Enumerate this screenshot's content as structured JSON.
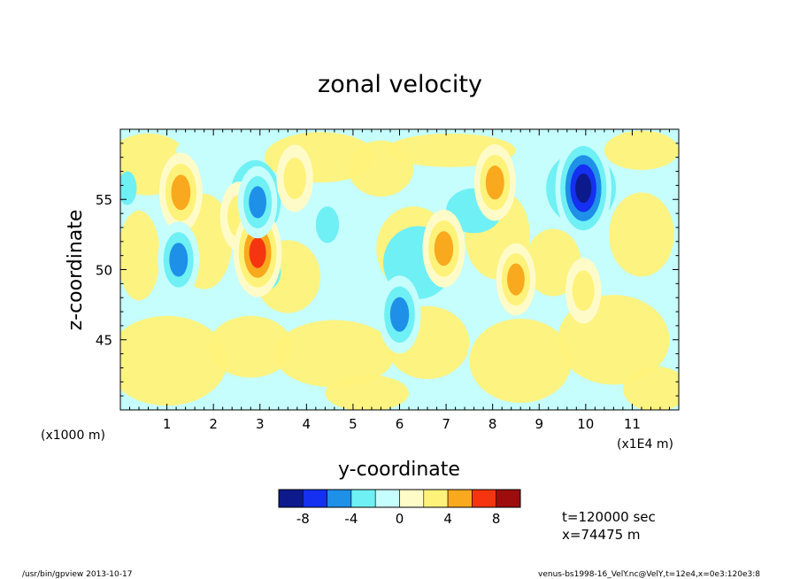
{
  "chart_data": {
    "type": "heatmap",
    "title": "zonal velocity",
    "xlabel": "y-coordinate",
    "ylabel": "z-coordinate",
    "x_unit_left": "(x1000 m)",
    "x_unit_right": "(x1E4 m)",
    "xlim": [
      0,
      12
    ],
    "ylim": [
      40,
      60
    ],
    "x_ticks": [
      "1",
      "2",
      "3",
      "4",
      "5",
      "6",
      "7",
      "8",
      "9",
      "10",
      "11"
    ],
    "y_ticks": [
      "45",
      "50",
      "55"
    ],
    "colorbar": {
      "colors": [
        "#0d1a8c",
        "#1530f0",
        "#1e90e8",
        "#6ff0f4",
        "#c6fdfd",
        "#fffbc8",
        "#fff27a",
        "#f9a91e",
        "#f53510",
        "#9e0d0d"
      ],
      "tick_labels": [
        "-8",
        "-4",
        "0",
        "4",
        "8"
      ],
      "bounds": [
        -10,
        10
      ]
    },
    "features": [
      {
        "y": 1.3,
        "z": 55.5,
        "value": 5.2
      },
      {
        "y": 2.55,
        "z": 53.8,
        "value": 3.8
      },
      {
        "y": 2.95,
        "z": 51.2,
        "value": 6.5
      },
      {
        "y": 1.25,
        "z": 50.7,
        "value": -4.8
      },
      {
        "y": 2.95,
        "z": 54.8,
        "value": -4.2
      },
      {
        "y": 3.75,
        "z": 56.5,
        "value": 3.5
      },
      {
        "y": 6.0,
        "z": 46.8,
        "value": -5.0
      },
      {
        "y": 6.95,
        "z": 51.5,
        "value": 5.0
      },
      {
        "y": 8.05,
        "z": 56.2,
        "value": 4.8
      },
      {
        "y": 8.5,
        "z": 49.3,
        "value": 4.2
      },
      {
        "y": 9.95,
        "z": 55.8,
        "value": -8.5
      },
      {
        "y": 9.95,
        "z": 48.5,
        "value": 3.3
      }
    ]
  },
  "annotations": {
    "time": "t=120000 sec",
    "position": "x=74475 m"
  },
  "footer": {
    "left": "/usr/bin/gpview  2013-10-17",
    "right": "venus-bs1998-16_VelY.nc@VelY,t=12e4,x=0e3:120e3:8"
  }
}
